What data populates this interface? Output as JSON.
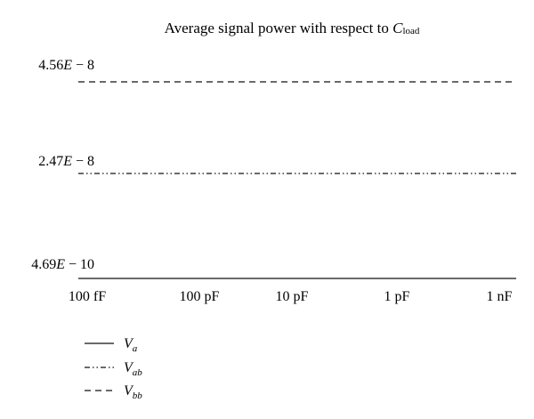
{
  "chart_data": {
    "type": "line",
    "title": "Average signal power with respect to ",
    "title_symbol": "C",
    "title_symbol_sub": "load",
    "categories": [
      "100 fF",
      "100 pF",
      "10 pF",
      "1 pF",
      "1 nF"
    ],
    "y_ticks": [
      {
        "label": "4.56",
        "mantissa_suffix": "E",
        "exponent": " − 8",
        "value": 4.56e-08
      },
      {
        "label": "2.47",
        "mantissa_suffix": "E",
        "exponent": " − 8",
        "value": 2.47e-08
      },
      {
        "label": "4.69",
        "mantissa_suffix": "E",
        "exponent": " − 10",
        "value": 4.69e-10
      }
    ],
    "series": [
      {
        "name": "V",
        "sub": "a",
        "style": "solid",
        "values": [
          4.69e-10,
          4.69e-10,
          4.69e-10,
          4.69e-10,
          4.69e-10
        ]
      },
      {
        "name": "V",
        "sub": "ab",
        "style": "dashdot",
        "values": [
          2.47e-08,
          2.47e-08,
          2.47e-08,
          2.47e-08,
          2.47e-08
        ]
      },
      {
        "name": "V",
        "sub": "bb",
        "style": "dashed",
        "values": [
          4.56e-08,
          4.56e-08,
          4.56e-08,
          4.56e-08,
          4.56e-08
        ]
      }
    ],
    "legend_position": "bottom-left",
    "grid": false
  }
}
